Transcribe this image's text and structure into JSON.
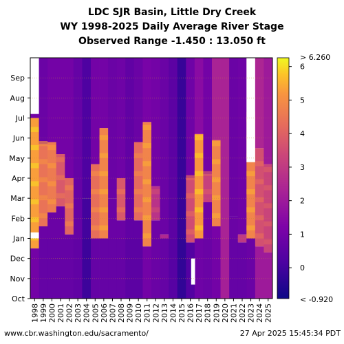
{
  "title": {
    "line1": "LDC SJR Basin, Little Dry Creek",
    "line2": "WY 1998-2025 Daily Average River Stage",
    "line3": "Observed Range -1.450 : 13.050 ft"
  },
  "footer": {
    "url": "www.cbr.washington.edu/sacramento/",
    "timestamp": "27 Apr 2025 15:45:34 PDT"
  },
  "chart_data": {
    "type": "heatmap",
    "x_tick_labels": [
      "1998",
      "1999",
      "2000",
      "2001",
      "2002",
      "2003",
      "2004",
      "2005",
      "2006",
      "2007",
      "2008",
      "2009",
      "2010",
      "2011",
      "2012",
      "2013",
      "2014",
      "2015",
      "2016",
      "2017",
      "2018",
      "2019",
      "2020",
      "2021",
      "2022",
      "2023",
      "2024",
      "2025"
    ],
    "y_tick_labels": [
      "Oct",
      "Nov",
      "Dec",
      "Jan",
      "Feb",
      "Mar",
      "Apr",
      "May",
      "Jun",
      "Jul",
      "Aug",
      "Sep"
    ],
    "colorbar": {
      "range": [
        -0.92,
        6.26
      ],
      "ticks": [
        0,
        1,
        2,
        3,
        4,
        5,
        6
      ],
      "tick_labels": [
        "0",
        "1",
        "2",
        "3",
        "4",
        "5",
        "6"
      ],
      "top_label": "> 6.260",
      "bottom_label": "< -0.920",
      "colormap": "plasma"
    },
    "columns_note": "Per water year: base (Oct-Dec) level, elevated-period start/end month index (0=Oct) with level, and late-season level; values in ft",
    "years": [
      {
        "wy": 1998,
        "base": 1.0,
        "peak_start": 2.5,
        "peak_end": 9.0,
        "peak": 5.3,
        "late": 1.0
      },
      {
        "wy": 1999,
        "base": 0.7,
        "peak_start": 3.6,
        "peak_end": 7.7,
        "peak": 4.4,
        "late": 0.8
      },
      {
        "wy": 2000,
        "base": 0.7,
        "peak_start": 4.3,
        "peak_end": 7.8,
        "peak": 4.6,
        "late": 1.0
      },
      {
        "wy": 2001,
        "base": 0.7,
        "peak_start": 4.6,
        "peak_end": 7.2,
        "peak": 3.8,
        "late": 1.0
      },
      {
        "wy": 2002,
        "base": 0.7,
        "peak_start": 3.2,
        "peak_end": 6.0,
        "peak": 4.1,
        "late": 1.0
      },
      {
        "wy": 2003,
        "base": 0.6,
        "peak_start": 12,
        "peak_end": 12,
        "peak": 0.6,
        "late": 0.5
      },
      {
        "wy": 2004,
        "base": -0.1,
        "peak_start": 5.0,
        "peak_end": 5.0,
        "peak": 1.2,
        "late": 0.2
      },
      {
        "wy": 2005,
        "base": 0.7,
        "peak_start": 3.0,
        "peak_end": 6.7,
        "peak": 4.3,
        "late": 1.0
      },
      {
        "wy": 2006,
        "base": 0.7,
        "peak_start": 3.0,
        "peak_end": 8.5,
        "peak": 4.8,
        "late": 1.0
      },
      {
        "wy": 2007,
        "base": 0.7,
        "peak_start": 5.0,
        "peak_end": 5.0,
        "peak": 1.5,
        "late": 0.8
      },
      {
        "wy": 2008,
        "base": 0.7,
        "peak_start": 3.9,
        "peak_end": 6.0,
        "peak": 3.8,
        "late": 0.9
      },
      {
        "wy": 2009,
        "base": 0.5,
        "peak_start": 12,
        "peak_end": 12,
        "peak": 0.5,
        "late": 0.5
      },
      {
        "wy": 2010,
        "base": 0.5,
        "peak_start": 3.9,
        "peak_end": 7.8,
        "peak": 4.2,
        "late": 0.8
      },
      {
        "wy": 2011,
        "base": 1.0,
        "peak_start": 2.6,
        "peak_end": 8.8,
        "peak": 4.8,
        "late": 1.1
      },
      {
        "wy": 2012,
        "base": 0.8,
        "peak_start": 3.9,
        "peak_end": 5.6,
        "peak": 2.8,
        "late": 1.0
      },
      {
        "wy": 2013,
        "base": 0.7,
        "peak_start": 3.0,
        "peak_end": 3.2,
        "peak": 2.5,
        "late": 0.8
      },
      {
        "wy": 2014,
        "base": 0.4,
        "peak_start": 12,
        "peak_end": 12,
        "peak": 0.4,
        "late": 0.4
      },
      {
        "wy": 2015,
        "base": -0.3,
        "peak_start": 12,
        "peak_end": 12,
        "peak": -0.3,
        "late": -0.3
      },
      {
        "wy": 2016,
        "base": 0.3,
        "peak_start": 2.8,
        "peak_end": 6.0,
        "peak": 3.5,
        "late": 0.9
      },
      {
        "wy": 2017,
        "base": 0.9,
        "peak_start": 3.0,
        "peak_end": 8.2,
        "peak": 5.2,
        "late": 1.5
      },
      {
        "wy": 2018,
        "base": 0.8,
        "peak_start": 4.8,
        "peak_end": 6.2,
        "peak": 3.2,
        "late": 1.0
      },
      {
        "wy": 2019,
        "base": 1.0,
        "peak_start": 3.6,
        "peak_end": 7.9,
        "peak": 4.8,
        "late": 2.3
      },
      {
        "wy": 2020,
        "base": 2.2,
        "peak_start": 12,
        "peak_end": 12,
        "peak": 2.2,
        "late": 2.2
      },
      {
        "wy": 2021,
        "base": 0.7,
        "peak_start": 4.1,
        "peak_end": 4.1,
        "peak": 1.0,
        "late": 0.8
      },
      {
        "wy": 2022,
        "base": 0.7,
        "peak_start": 2.8,
        "peak_end": 3.2,
        "peak": 3.0,
        "late": 0.9
      },
      {
        "wy": 2023,
        "base": 0.8,
        "peak_start": 3.0,
        "peak_end": 9.3,
        "peak": 4.8,
        "late": 2.3
      },
      {
        "wy": 2024,
        "base": 2.0,
        "peak_start": 2.6,
        "peak_end": 7.5,
        "peak": 3.6,
        "late": 2.4
      },
      {
        "wy": 2025,
        "base": 2.0,
        "peak_start": 2.3,
        "peak_end": 6.7,
        "peak": 3.3,
        "late": 2.0
      }
    ]
  }
}
